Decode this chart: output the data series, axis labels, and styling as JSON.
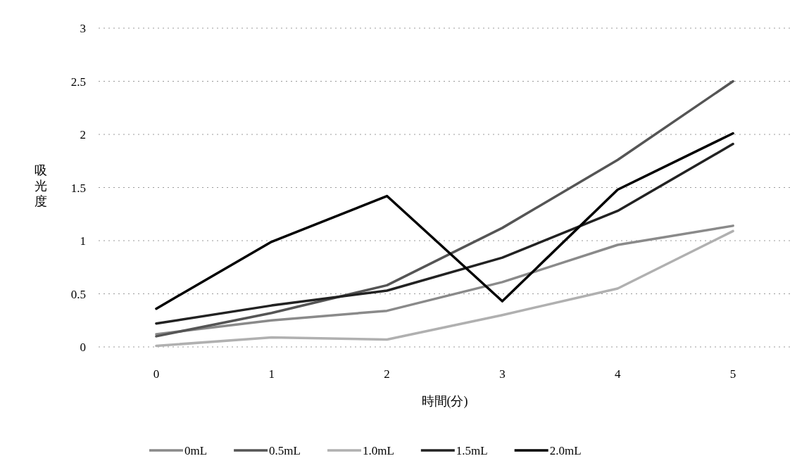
{
  "chart_data": {
    "type": "line",
    "xlabel": "時間(分)",
    "ylabel": "吸光度",
    "categories": [
      "0",
      "1",
      "2",
      "3",
      "4",
      "5"
    ],
    "ylim": [
      0,
      3
    ],
    "yticks": [
      0,
      0.5,
      1,
      1.5,
      2,
      2.5,
      3
    ],
    "grid": "y",
    "legend": "bottom",
    "series": [
      {
        "name": "0mL",
        "color": "#8a8a8a",
        "values": [
          0.12,
          0.25,
          0.34,
          0.61,
          0.96,
          1.14
        ]
      },
      {
        "name": "0.5mL",
        "color": "#555555",
        "values": [
          0.1,
          0.32,
          0.58,
          1.12,
          1.76,
          2.5
        ]
      },
      {
        "name": "1.0mL",
        "color": "#b0b0b0",
        "values": [
          0.01,
          0.09,
          0.07,
          0.3,
          0.55,
          1.09
        ]
      },
      {
        "name": "1.5mL",
        "color": "#222222",
        "values": [
          0.22,
          0.39,
          0.53,
          0.84,
          1.28,
          1.91
        ]
      },
      {
        "name": "2.0mL",
        "color": "#000000",
        "values": [
          0.36,
          0.99,
          1.42,
          0.43,
          1.48,
          2.01
        ]
      }
    ]
  }
}
